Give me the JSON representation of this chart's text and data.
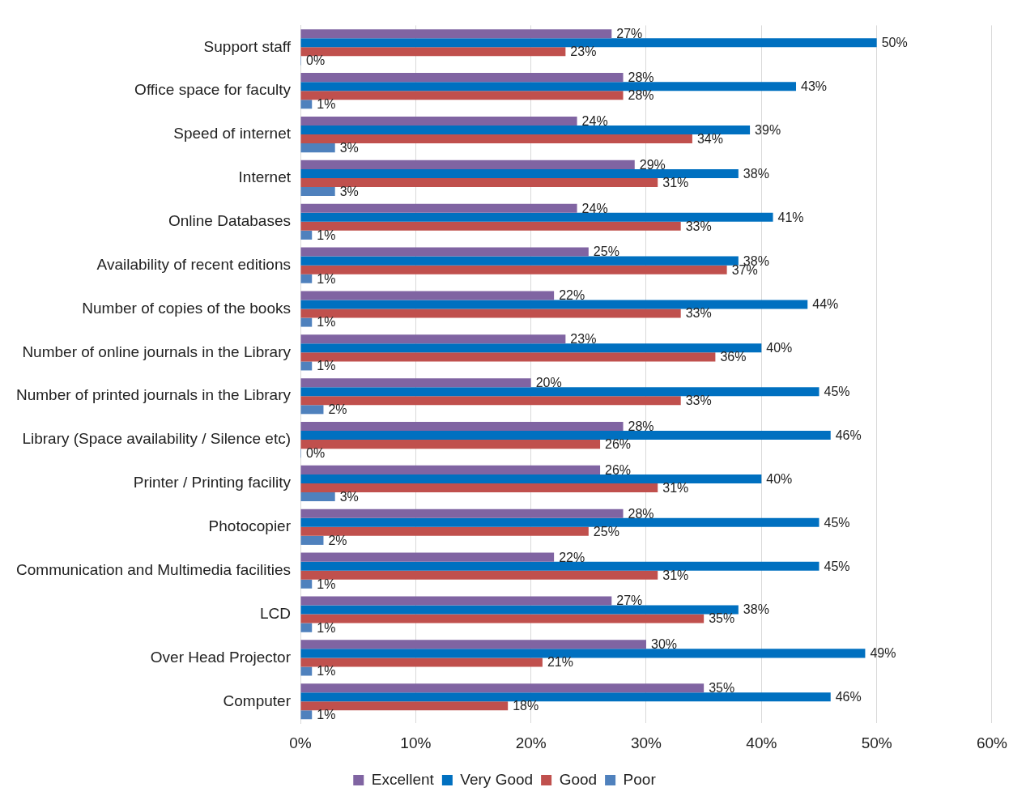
{
  "chart_data": {
    "type": "bar",
    "orientation": "horizontal",
    "categories": [
      "Support staff",
      "Office space for faculty",
      "Speed of internet",
      "Internet",
      "Online Databases",
      "Availability of recent editions",
      "Number of copies of the books",
      "Number of online journals in the Library",
      "Number of printed journals in the Library",
      "Library (Space availability / Silence etc)",
      "Printer / Printing facility",
      "Photocopier",
      "Communication and Multimedia facilities",
      "LCD",
      "Over Head Projector",
      "Computer"
    ],
    "series": [
      {
        "name": "Excellent",
        "color": "#8064a2",
        "values": [
          27,
          28,
          24,
          29,
          24,
          25,
          22,
          23,
          20,
          28,
          26,
          28,
          22,
          27,
          30,
          35
        ],
        "value_labels": [
          "27%",
          "28%",
          "24%",
          "29%",
          "24%",
          "25%",
          "22%",
          "23%",
          "20%",
          "28%",
          "26%",
          "28%",
          "22%",
          "27%",
          "30%",
          "35%"
        ]
      },
      {
        "name": "Very Good",
        "color": "#0070c0",
        "values": [
          50,
          43,
          39,
          38,
          41,
          38,
          44,
          40,
          45,
          46,
          40,
          45,
          45,
          38,
          49,
          46
        ],
        "value_labels": [
          "50%",
          "43%",
          "39%",
          "38%",
          "41%",
          "38%",
          "44%",
          "40%",
          "45%",
          "46%",
          "40%",
          "45%",
          "45%",
          "38%",
          "49%",
          "46%"
        ]
      },
      {
        "name": "Good",
        "color": "#c0504d",
        "values": [
          23,
          28,
          34,
          31,
          33,
          37,
          33,
          36,
          33,
          26,
          31,
          25,
          31,
          35,
          21,
          18
        ],
        "value_labels": [
          "23%",
          "28%",
          "34%",
          "31%",
          "33%",
          "37%",
          "33%",
          "36%",
          "33%",
          "26%",
          "31%",
          "25%",
          "31%",
          "35%",
          "21%",
          "18%"
        ]
      },
      {
        "name": "Poor",
        "color": "#4f81bd",
        "values": [
          0,
          1,
          3,
          3,
          1,
          1,
          1,
          1,
          2,
          0,
          3,
          2,
          1,
          1,
          1,
          1
        ],
        "value_labels": [
          "0%",
          "1%",
          "3%",
          "3%",
          "1%",
          "1%",
          "1%",
          "1%",
          "2%",
          "0%",
          "3%",
          "2%",
          "1%",
          "1%",
          "1%",
          "1%"
        ]
      }
    ],
    "xlim": [
      0,
      60
    ],
    "xticks": [
      {
        "value": 0,
        "label": "0%"
      },
      {
        "value": 10,
        "label": "10%"
      },
      {
        "value": 20,
        "label": "20%"
      },
      {
        "value": 30,
        "label": "30%"
      },
      {
        "value": 40,
        "label": "40%"
      },
      {
        "value": 50,
        "label": "50%"
      },
      {
        "value": 60,
        "label": "60%"
      }
    ],
    "grid": "x",
    "legend": "bottom"
  }
}
